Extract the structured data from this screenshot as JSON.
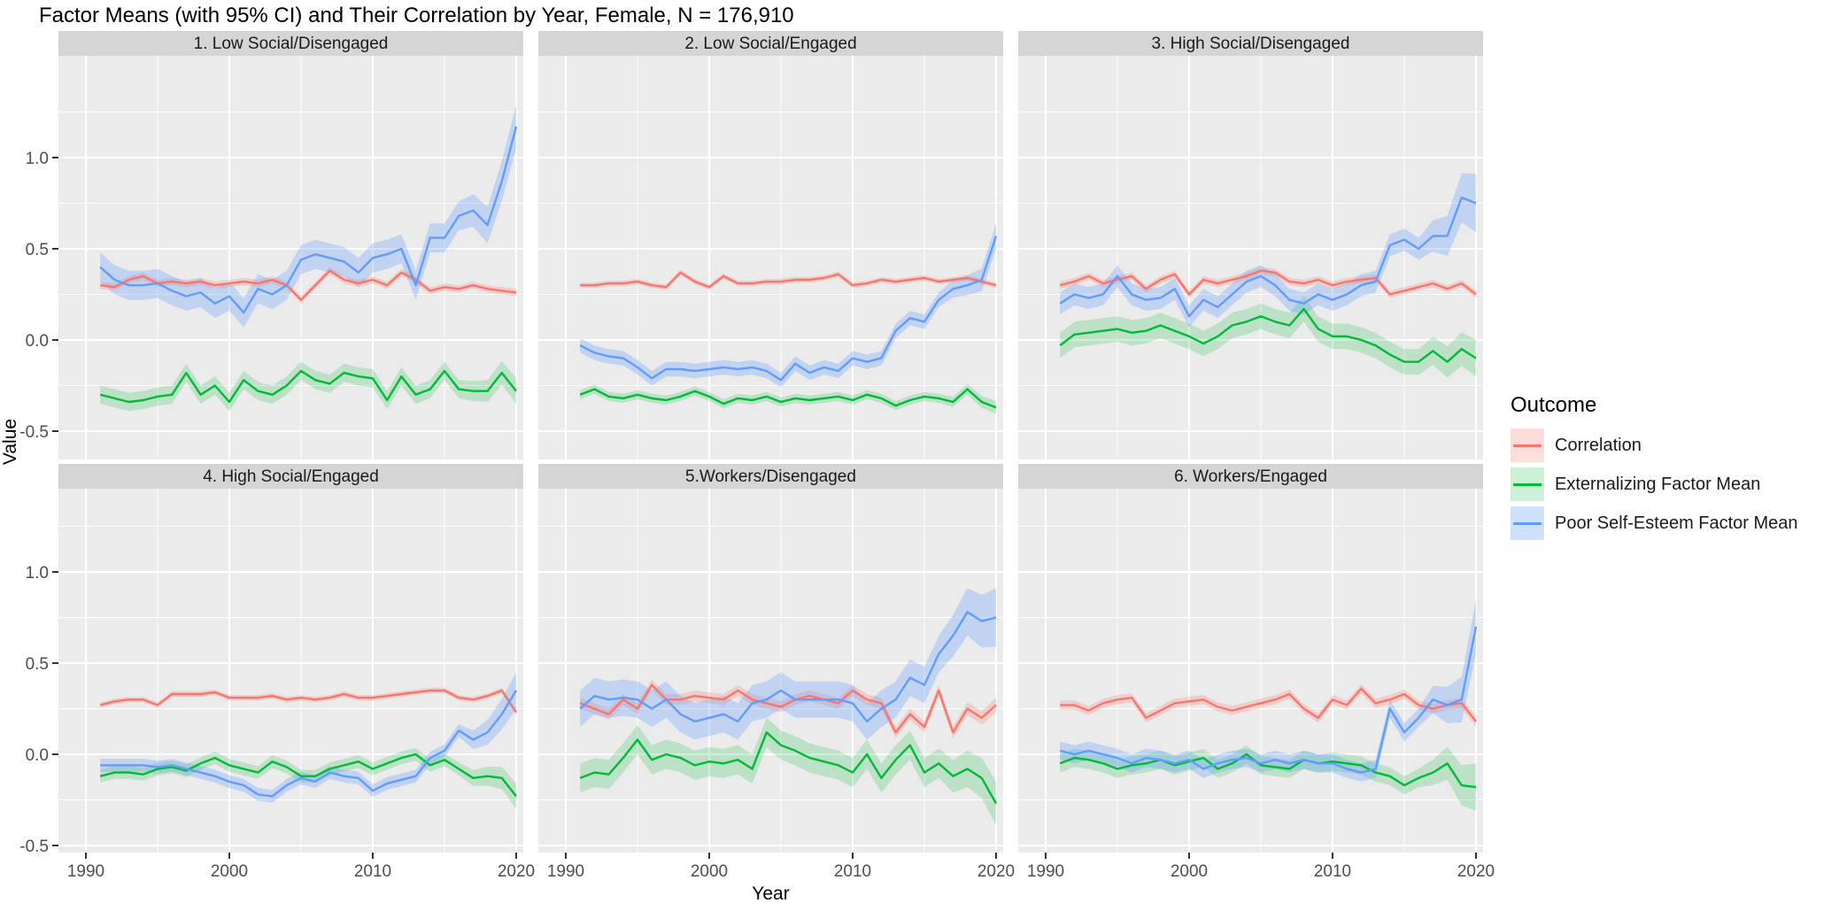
{
  "chart_data": {
    "type": "line",
    "title": "Factor Means (with 95% CI) and Their Correlation by Year, Female, N = 176,910",
    "xlabel": "Year",
    "ylabel": "Value",
    "facet_layout": "3 columns x 2 rows",
    "x": [
      1991,
      1992,
      1993,
      1994,
      1995,
      1996,
      1997,
      1998,
      1999,
      2000,
      2001,
      2002,
      2003,
      2004,
      2005,
      2006,
      2007,
      2008,
      2009,
      2010,
      2011,
      2012,
      2013,
      2014,
      2015,
      2016,
      2017,
      2018,
      2019,
      2020
    ],
    "x_ticks": [
      1990,
      2000,
      2010,
      2020
    ],
    "x_minor_ticks": [
      1995,
      2005,
      2015
    ],
    "y_ticks": [
      1.0,
      0.5,
      0.0,
      -0.5
    ],
    "y_tick_labels": [
      "1.0",
      "0.5",
      "0.0",
      "-0.5"
    ],
    "y_minor_ticks": [
      1.25,
      0.75,
      0.25,
      -0.25
    ],
    "ylim": [
      -0.65,
      1.56
    ],
    "grid": "on",
    "colors": {
      "correlation": "#F8766D",
      "externalizing": "#00BA38",
      "esteem": "#619CFF",
      "correlation_ribbon": "rgba(248,118,109,0.25)",
      "externalizing_ribbon": "rgba(0,186,56,0.20)",
      "esteem_ribbon": "rgba(97,156,255,0.30)",
      "panel_bg": "#EBEBEB",
      "strip_bg": "#D5D5D5",
      "gridline": "#FFFFFF",
      "tick_label": "#4D4D4D",
      "tick_mark": "#333333"
    },
    "legend": {
      "title": "Outcome",
      "position": "right",
      "items": [
        {
          "label": "Correlation",
          "color": "#F8766D",
          "fill": "rgba(248,118,109,0.25)"
        },
        {
          "label": "Externalizing Factor Mean",
          "color": "#00BA38",
          "fill": "rgba(0,186,56,0.20)"
        },
        {
          "label": "Poor Self-Esteem Factor Mean",
          "color": "#619CFF",
          "fill": "rgba(97,156,255,0.30)"
        }
      ]
    },
    "series_note": "values are factor means / correlations per year 1991-2020; ci = [typical 95% CI half-width, half-width at 2020]",
    "panels": [
      {
        "title": "1. Low Social/Disengaged",
        "correlation": {
          "values": [
            0.3,
            0.29,
            0.33,
            0.35,
            0.31,
            0.32,
            0.31,
            0.32,
            0.3,
            0.31,
            0.32,
            0.31,
            0.33,
            0.3,
            0.22,
            0.3,
            0.38,
            0.33,
            0.31,
            0.33,
            0.3,
            0.37,
            0.33,
            0.27,
            0.29,
            0.28,
            0.3,
            0.28,
            0.27,
            0.26
          ],
          "ci": [
            0.02,
            0.02
          ]
        },
        "externalizing": {
          "values": [
            -0.3,
            -0.32,
            -0.34,
            -0.33,
            -0.31,
            -0.3,
            -0.18,
            -0.3,
            -0.25,
            -0.34,
            -0.22,
            -0.28,
            -0.3,
            -0.25,
            -0.17,
            -0.22,
            -0.24,
            -0.18,
            -0.2,
            -0.21,
            -0.33,
            -0.2,
            -0.3,
            -0.27,
            -0.17,
            -0.27,
            -0.28,
            -0.28,
            -0.18,
            -0.28
          ],
          "ci": [
            0.05,
            0.07
          ]
        },
        "esteem": {
          "values": [
            0.4,
            0.33,
            0.3,
            0.3,
            0.31,
            0.27,
            0.24,
            0.26,
            0.2,
            0.24,
            0.15,
            0.28,
            0.25,
            0.3,
            0.44,
            0.47,
            0.45,
            0.43,
            0.37,
            0.45,
            0.47,
            0.5,
            0.3,
            0.56,
            0.56,
            0.68,
            0.71,
            0.63,
            0.87,
            1.17
          ],
          "ci": [
            0.08,
            0.12
          ]
        }
      },
      {
        "title": "2. Low Social/Engaged",
        "correlation": {
          "values": [
            0.3,
            0.3,
            0.31,
            0.31,
            0.32,
            0.3,
            0.29,
            0.37,
            0.32,
            0.29,
            0.35,
            0.31,
            0.31,
            0.32,
            0.32,
            0.33,
            0.33,
            0.34,
            0.36,
            0.3,
            0.31,
            0.33,
            0.32,
            0.33,
            0.34,
            0.32,
            0.33,
            0.34,
            0.32,
            0.3
          ],
          "ci": [
            0.015,
            0.015
          ]
        },
        "externalizing": {
          "values": [
            -0.3,
            -0.27,
            -0.31,
            -0.32,
            -0.3,
            -0.32,
            -0.33,
            -0.31,
            -0.28,
            -0.31,
            -0.35,
            -0.32,
            -0.33,
            -0.31,
            -0.34,
            -0.32,
            -0.33,
            -0.32,
            -0.31,
            -0.33,
            -0.3,
            -0.32,
            -0.36,
            -0.33,
            -0.31,
            -0.32,
            -0.34,
            -0.27,
            -0.34,
            -0.37
          ],
          "ci": [
            0.025,
            0.035
          ]
        },
        "esteem": {
          "values": [
            -0.03,
            -0.07,
            -0.09,
            -0.1,
            -0.15,
            -0.21,
            -0.16,
            -0.16,
            -0.17,
            -0.16,
            -0.15,
            -0.16,
            -0.15,
            -0.17,
            -0.22,
            -0.13,
            -0.18,
            -0.15,
            -0.17,
            -0.1,
            -0.12,
            -0.1,
            0.05,
            0.12,
            0.1,
            0.22,
            0.28,
            0.3,
            0.33,
            0.57
          ],
          "ci": [
            0.04,
            0.07
          ]
        }
      },
      {
        "title": "3. High Social/Disengaged",
        "correlation": {
          "values": [
            0.3,
            0.32,
            0.35,
            0.31,
            0.33,
            0.35,
            0.28,
            0.33,
            0.36,
            0.25,
            0.33,
            0.31,
            0.33,
            0.35,
            0.38,
            0.37,
            0.32,
            0.31,
            0.33,
            0.3,
            0.32,
            0.33,
            0.34,
            0.25,
            0.27,
            0.29,
            0.31,
            0.28,
            0.31,
            0.25
          ],
          "ci": [
            0.02,
            0.02
          ]
        },
        "externalizing": {
          "values": [
            -0.03,
            0.03,
            0.04,
            0.05,
            0.06,
            0.04,
            0.05,
            0.08,
            0.05,
            0.02,
            -0.02,
            0.02,
            0.08,
            0.1,
            0.13,
            0.1,
            0.08,
            0.17,
            0.06,
            0.02,
            0.02,
            0.0,
            -0.03,
            -0.08,
            -0.12,
            -0.12,
            -0.06,
            -0.12,
            -0.05,
            -0.1
          ],
          "ci": [
            0.07,
            0.1
          ]
        },
        "esteem": {
          "values": [
            0.2,
            0.25,
            0.23,
            0.25,
            0.35,
            0.25,
            0.22,
            0.23,
            0.28,
            0.13,
            0.22,
            0.18,
            0.25,
            0.32,
            0.35,
            0.3,
            0.22,
            0.2,
            0.25,
            0.22,
            0.25,
            0.3,
            0.32,
            0.52,
            0.55,
            0.5,
            0.57,
            0.57,
            0.78,
            0.75
          ],
          "ci": [
            0.06,
            0.16
          ]
        }
      },
      {
        "title": "4. High Social/Engaged",
        "correlation": {
          "values": [
            0.27,
            0.29,
            0.3,
            0.3,
            0.27,
            0.33,
            0.33,
            0.33,
            0.34,
            0.31,
            0.31,
            0.31,
            0.32,
            0.3,
            0.31,
            0.3,
            0.31,
            0.33,
            0.31,
            0.31,
            0.32,
            0.33,
            0.34,
            0.35,
            0.35,
            0.31,
            0.3,
            0.32,
            0.35,
            0.23
          ],
          "ci": [
            0.015,
            0.015
          ]
        },
        "externalizing": {
          "values": [
            -0.12,
            -0.1,
            -0.1,
            -0.11,
            -0.08,
            -0.07,
            -0.09,
            -0.05,
            -0.02,
            -0.06,
            -0.08,
            -0.1,
            -0.04,
            -0.07,
            -0.12,
            -0.12,
            -0.08,
            -0.06,
            -0.04,
            -0.08,
            -0.05,
            -0.02,
            0.0,
            -0.06,
            -0.03,
            -0.08,
            -0.13,
            -0.12,
            -0.13,
            -0.23
          ],
          "ci": [
            0.035,
            0.07
          ]
        },
        "esteem": {
          "values": [
            -0.06,
            -0.06,
            -0.06,
            -0.06,
            -0.07,
            -0.06,
            -0.08,
            -0.1,
            -0.12,
            -0.15,
            -0.17,
            -0.22,
            -0.23,
            -0.17,
            -0.13,
            -0.15,
            -0.1,
            -0.12,
            -0.13,
            -0.2,
            -0.16,
            -0.14,
            -0.12,
            -0.02,
            0.02,
            0.13,
            0.08,
            0.12,
            0.22,
            0.35
          ],
          "ci": [
            0.035,
            0.1
          ]
        }
      },
      {
        "title": "5.Workers/Disengaged",
        "correlation": {
          "values": [
            0.28,
            0.25,
            0.22,
            0.3,
            0.25,
            0.38,
            0.3,
            0.3,
            0.32,
            0.31,
            0.3,
            0.35,
            0.3,
            0.28,
            0.26,
            0.3,
            0.32,
            0.3,
            0.28,
            0.35,
            0.3,
            0.28,
            0.12,
            0.22,
            0.15,
            0.35,
            0.12,
            0.25,
            0.2,
            0.27
          ],
          "ci": [
            0.03,
            0.04
          ]
        },
        "externalizing": {
          "values": [
            -0.13,
            -0.1,
            -0.11,
            -0.02,
            0.08,
            -0.03,
            0.0,
            -0.02,
            -0.06,
            -0.04,
            -0.05,
            -0.03,
            -0.08,
            0.12,
            0.05,
            0.02,
            -0.02,
            -0.04,
            -0.06,
            -0.1,
            0.0,
            -0.13,
            -0.03,
            0.05,
            -0.1,
            -0.05,
            -0.12,
            -0.08,
            -0.13,
            -0.27
          ],
          "ci": [
            0.08,
            0.12
          ]
        },
        "esteem": {
          "values": [
            0.25,
            0.32,
            0.3,
            0.31,
            0.3,
            0.25,
            0.3,
            0.22,
            0.18,
            0.2,
            0.22,
            0.18,
            0.28,
            0.3,
            0.35,
            0.3,
            0.3,
            0.3,
            0.3,
            0.28,
            0.18,
            0.25,
            0.3,
            0.42,
            0.38,
            0.55,
            0.65,
            0.78,
            0.73,
            0.75
          ],
          "ci": [
            0.1,
            0.16
          ]
        }
      },
      {
        "title": "6. Workers/Engaged",
        "correlation": {
          "values": [
            0.27,
            0.27,
            0.24,
            0.28,
            0.3,
            0.31,
            0.2,
            0.24,
            0.28,
            0.29,
            0.3,
            0.26,
            0.24,
            0.26,
            0.28,
            0.3,
            0.33,
            0.25,
            0.2,
            0.3,
            0.27,
            0.36,
            0.28,
            0.3,
            0.33,
            0.27,
            0.25,
            0.27,
            0.28,
            0.18
          ],
          "ci": [
            0.025,
            0.03
          ]
        },
        "externalizing": {
          "values": [
            -0.05,
            -0.02,
            -0.03,
            -0.05,
            -0.08,
            -0.06,
            -0.05,
            -0.03,
            -0.06,
            -0.04,
            -0.02,
            -0.08,
            -0.05,
            0.0,
            -0.06,
            -0.07,
            -0.08,
            -0.03,
            -0.05,
            -0.04,
            -0.05,
            -0.06,
            -0.1,
            -0.12,
            -0.17,
            -0.13,
            -0.1,
            -0.05,
            -0.17,
            -0.18
          ],
          "ci": [
            0.05,
            0.13
          ]
        },
        "esteem": {
          "values": [
            0.02,
            0.0,
            0.02,
            0.0,
            -0.02,
            -0.05,
            -0.02,
            -0.03,
            -0.05,
            -0.03,
            -0.08,
            -0.05,
            -0.03,
            -0.02,
            -0.05,
            -0.03,
            -0.05,
            -0.03,
            -0.05,
            -0.05,
            -0.08,
            -0.1,
            -0.08,
            0.25,
            0.12,
            0.2,
            0.3,
            0.27,
            0.3,
            0.7
          ],
          "ci": [
            0.05,
            0.15
          ]
        }
      }
    ]
  }
}
